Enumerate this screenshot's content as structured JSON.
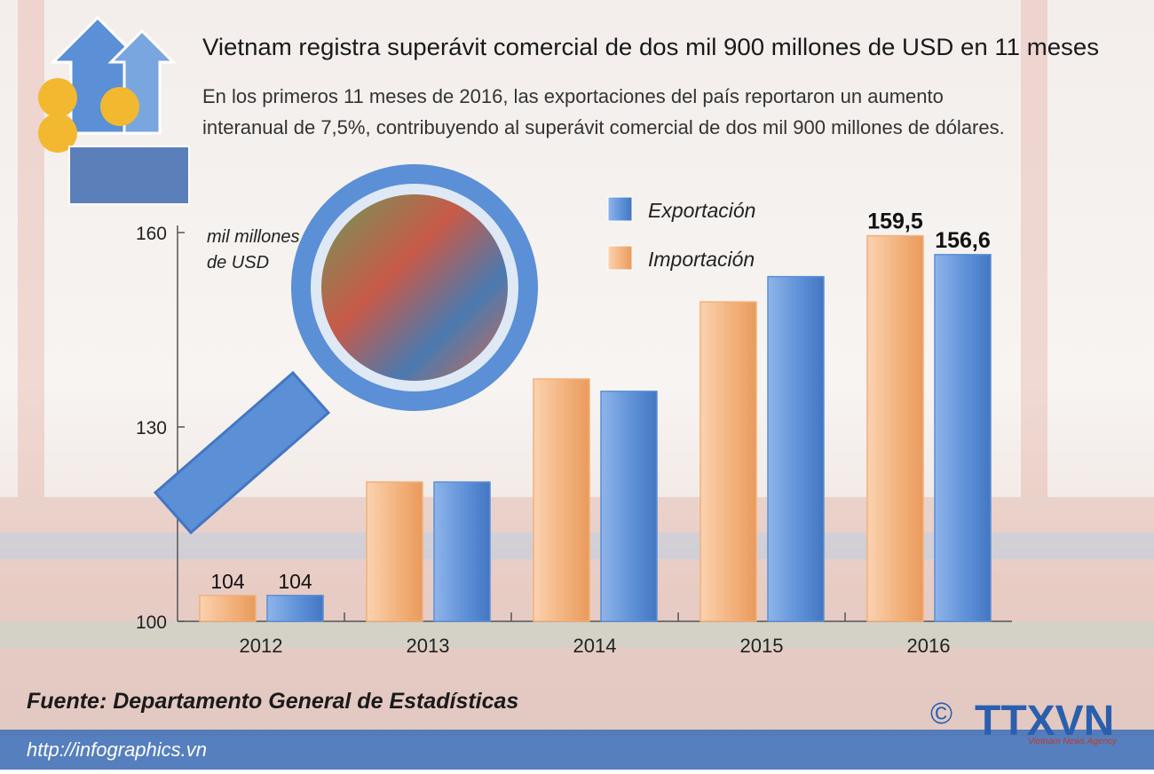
{
  "chart_data": {
    "type": "bar",
    "title": "Vietnam registra superávit comercial de dos mil 900 millones de USD en 11 meses",
    "subtitle": [
      "En los primeros 11 meses de 2016, las exportaciones del país reportaron un aumento",
      "interanual de 7,5%, contribuyendo al superávit comercial de  dos mil 900 millones de dólares."
    ],
    "y_label": [
      "mil millones",
      "de USD"
    ],
    "categories": [
      "2012",
      "2013",
      "2014",
      "2015",
      "2016"
    ],
    "series": [
      {
        "name": "Exportación",
        "color": "#5b8fd6",
        "values": [
          104,
          121.5,
          135.5,
          153.2,
          156.6
        ],
        "value_labels": [
          "104",
          null,
          null,
          null,
          "156,6"
        ]
      },
      {
        "name": "Importación",
        "color": "#f2b07a",
        "values": [
          104,
          121.5,
          137.4,
          149.3,
          159.5
        ],
        "value_labels": [
          "104",
          null,
          null,
          null,
          "159,5"
        ]
      }
    ],
    "ylim": [
      100,
      160
    ],
    "yticks": [
      100,
      130,
      160
    ],
    "source": "Fuente:  Departamento General de Estadísticas",
    "url": "http://infographics.vn",
    "logo": {
      "copyright": "©",
      "name": "TTXVN",
      "tagline": "Vietnam News Agency"
    }
  }
}
